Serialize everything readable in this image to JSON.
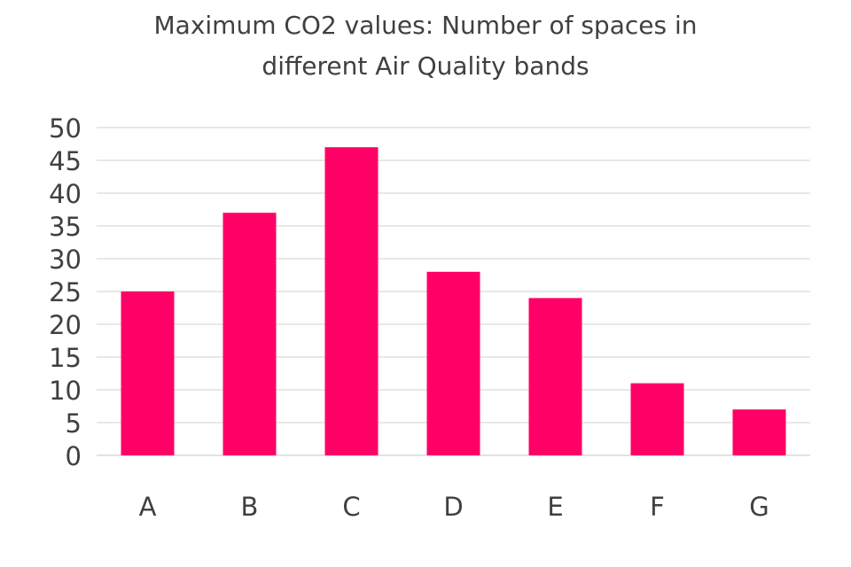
{
  "chart_data": {
    "type": "bar",
    "title": "Maximum CO2 values: Number of spaces in different Air Quality bands",
    "title_lines": [
      "Maximum CO2 values: Number of spaces in",
      "different Air Quality bands"
    ],
    "xlabel": "",
    "ylabel": "",
    "categories": [
      "A",
      "B",
      "C",
      "D",
      "E",
      "F",
      "G"
    ],
    "values": [
      25,
      37,
      47,
      28,
      24,
      11,
      7
    ],
    "ylim": [
      0,
      50
    ],
    "yticks": [
      0,
      5,
      10,
      15,
      20,
      25,
      30,
      35,
      40,
      45,
      50
    ],
    "grid": true,
    "legend": "none",
    "bar_color": "#ff0066",
    "grid_color": "#d9d9d9",
    "text_color": "#404040"
  }
}
